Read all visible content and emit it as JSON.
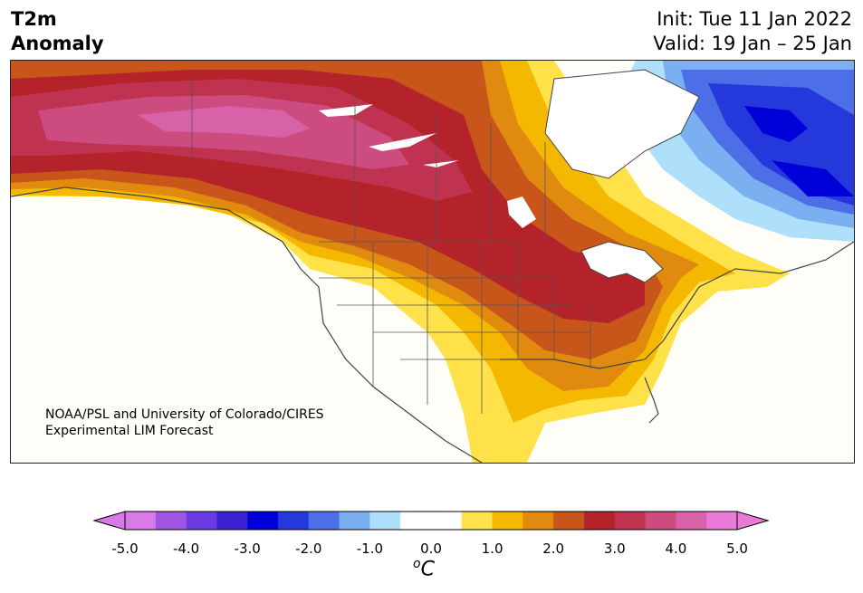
{
  "header": {
    "title_line1": "T2m",
    "title_line2": "Anomaly",
    "init": "Init: Tue 11 Jan 2022",
    "valid": "Valid: 19 Jan – 25 Jan"
  },
  "map": {
    "credit_line1": "NOAA/PSL and University of Colorado/CIRES",
    "credit_line2": "Experimental LIM Forecast"
  },
  "colorbar": {
    "ticks": [
      "-5.0",
      "-4.0",
      "-3.0",
      "-2.0",
      "-1.0",
      "0.0",
      "1.0",
      "2.0",
      "3.0",
      "4.0",
      "5.0"
    ],
    "unit_base": "C",
    "unit_sup": "o",
    "colors": [
      "#d97ae8",
      "#a055e0",
      "#6a3be0",
      "#3a22d0",
      "#0000d8",
      "#2438dc",
      "#4c6ee6",
      "#7ab0f2",
      "#aee0fb",
      "#ffffff",
      "#ffffff",
      "#ffe14a",
      "#f5b800",
      "#e08a10",
      "#c8561a",
      "#b4222a",
      "#c03350",
      "#cc4c80",
      "#d862a8",
      "#e87ad8"
    ]
  }
}
